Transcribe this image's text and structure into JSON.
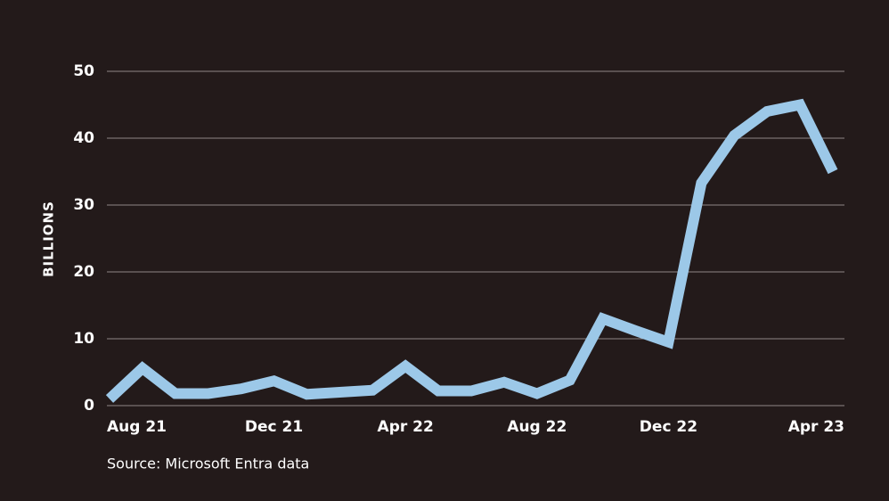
{
  "chart_data": {
    "type": "line",
    "ylabel": "BILLIONS",
    "source": "Source: Microsoft Entra data",
    "categories": [
      "Aug 21",
      null,
      null,
      null,
      null,
      "Dec 21",
      null,
      null,
      null,
      "Apr 22",
      null,
      null,
      null,
      "Aug 22",
      null,
      null,
      null,
      "Dec 22",
      null,
      null,
      null,
      null,
      "Apr 23"
    ],
    "series": [
      {
        "name": "Billions",
        "color": "#9cc8e8",
        "values": [
          1.0,
          5.6,
          1.8,
          1.8,
          2.5,
          3.7,
          1.7,
          2.0,
          2.3,
          5.9,
          2.2,
          2.2,
          3.5,
          1.8,
          3.8,
          13,
          11.2,
          9.5,
          33.3,
          40.4,
          44,
          45,
          35
        ]
      }
    ],
    "ylim": [
      0,
      50
    ],
    "yticks": [
      0,
      10,
      20,
      30,
      40,
      50
    ],
    "grid": true
  }
}
